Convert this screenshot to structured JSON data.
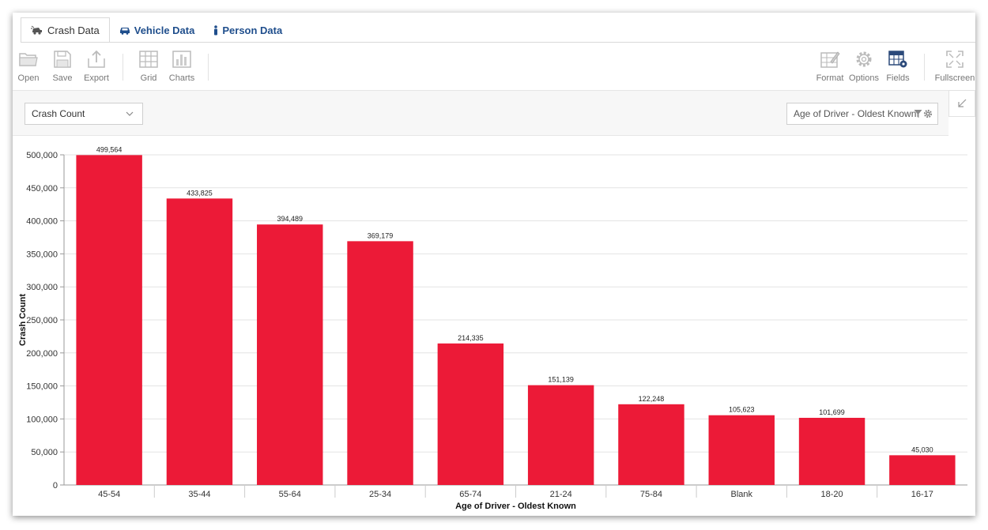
{
  "tabs": [
    {
      "label": "Crash Data",
      "icon": "car-crash-icon",
      "active": true
    },
    {
      "label": "Vehicle Data",
      "icon": "car-icon",
      "active": false
    },
    {
      "label": "Person Data",
      "icon": "person-icon",
      "active": false
    }
  ],
  "toolbar": {
    "open": "Open",
    "save": "Save",
    "export": "Export",
    "grid": "Grid",
    "charts": "Charts",
    "format": "Format",
    "options": "Options",
    "fields": "Fields",
    "fullscreen": "Fullscreen"
  },
  "controls": {
    "measure_select": "Crash Count",
    "row_field": "Age of Driver - Oldest Known"
  },
  "colors": {
    "bar": "#ec1a37",
    "tab_text": "#1f4e8c",
    "fields_icon": "#2c4a7a"
  },
  "chart_data": {
    "type": "bar",
    "categories": [
      "45-54",
      "35-44",
      "55-64",
      "25-34",
      "65-74",
      "21-24",
      "75-84",
      "Blank",
      "18-20",
      "16-17"
    ],
    "values": [
      499564,
      433825,
      394489,
      369179,
      214335,
      151139,
      122248,
      105623,
      101699,
      45030
    ],
    "value_labels": [
      "499,564",
      "433,825",
      "394,489",
      "369,179",
      "214,335",
      "151,139",
      "122,248",
      "105,623",
      "101,699",
      "45,030"
    ],
    "xlabel": "Age of Driver - Oldest Known",
    "ylabel": "Crash Count",
    "ylim": [
      0,
      500000
    ],
    "yticks": [
      0,
      50000,
      100000,
      150000,
      200000,
      250000,
      300000,
      350000,
      400000,
      450000,
      500000
    ],
    "ytick_labels": [
      "0",
      "50,000",
      "100,000",
      "150,000",
      "200,000",
      "250,000",
      "300,000",
      "350,000",
      "400,000",
      "450,000",
      "500,000"
    ],
    "grid": true,
    "legend": "none"
  }
}
